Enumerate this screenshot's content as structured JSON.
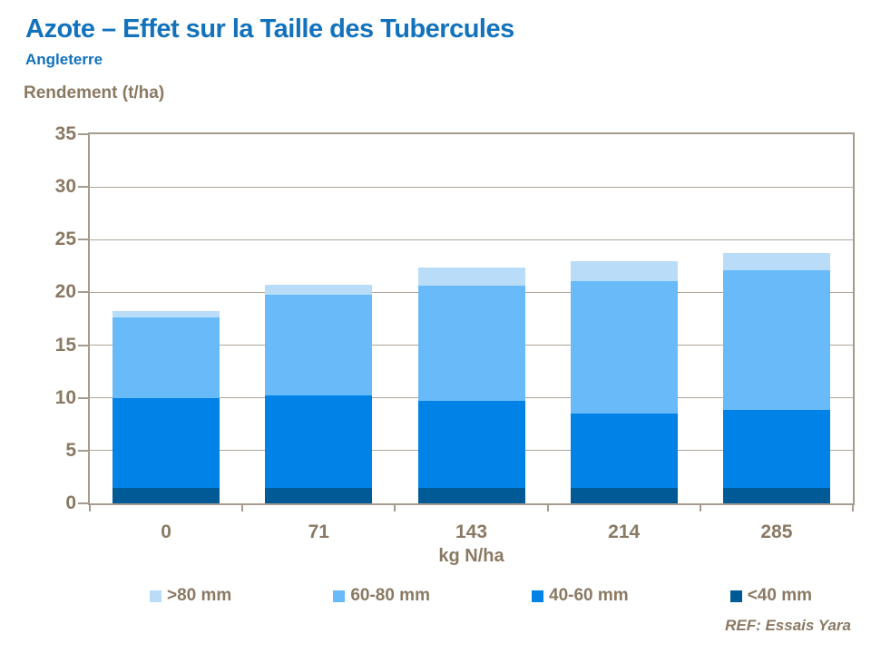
{
  "header": {
    "title": "Azote – Effet sur la Taille des Tubercules",
    "subtitle": "Angleterre"
  },
  "footer": {
    "ref": "REF: Essais Yara"
  },
  "colors": {
    "title_blue": "#1272BC",
    "text_brown": "#8A7963",
    "axis_taupe": "#A49B8E"
  },
  "chart_data": {
    "type": "bar",
    "stacked": true,
    "title": "",
    "ylabel": "Rendement (t/ha)",
    "xlabel": "kg N/ha",
    "categories": [
      "0",
      "71",
      "143",
      "214",
      "285"
    ],
    "series": [
      {
        "name": "<40 mm",
        "color": "#005A96",
        "values": [
          1.5,
          1.5,
          1.5,
          1.5,
          1.5
        ]
      },
      {
        "name": "40-60 mm",
        "color": "#0082E6",
        "values": [
          8.5,
          8.7,
          8.2,
          7.0,
          7.4
        ]
      },
      {
        "name": "60-80 mm",
        "color": "#68BBF8",
        "values": [
          7.6,
          9.6,
          10.9,
          12.6,
          13.2
        ]
      },
      {
        "name": ">80 mm",
        "color": "#B9DCF8",
        "values": [
          0.6,
          0.9,
          1.8,
          1.9,
          1.6
        ]
      }
    ],
    "totals": [
      18.2,
      20.7,
      22.4,
      23.0,
      23.7
    ],
    "ylim": [
      0,
      35
    ],
    "ytick_step": 5,
    "grid": true,
    "legend_position": "bottom",
    "legend_order": [
      ">80 mm",
      "60-80 mm",
      "40-60 mm",
      "<40 mm"
    ]
  }
}
